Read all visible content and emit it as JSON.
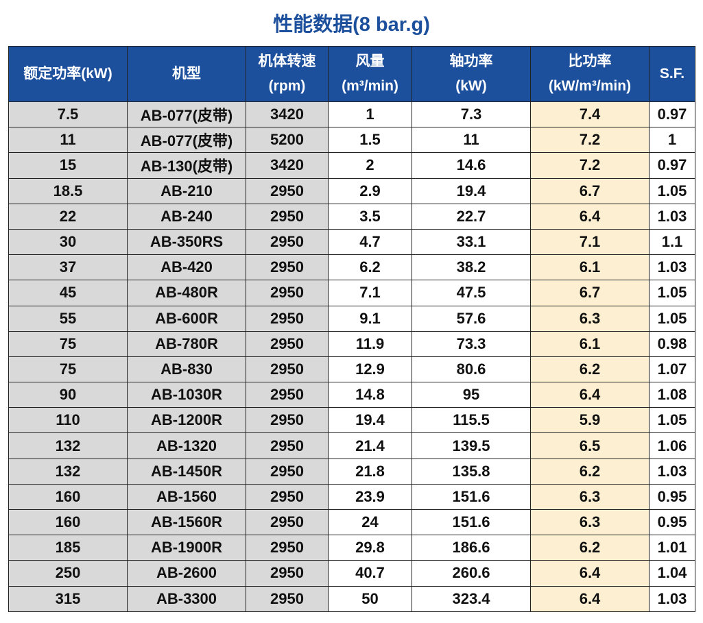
{
  "title": "性能数据(8 bar.g)",
  "headers": [
    [
      "额定功率(kW)"
    ],
    [
      "机型"
    ],
    [
      "机体转速",
      "(rpm)"
    ],
    [
      "风量",
      "(m³/min)"
    ],
    [
      "轴功率",
      "(kW)"
    ],
    [
      "比功率",
      "(kW/m³/min)"
    ],
    [
      "S.F."
    ]
  ],
  "rows": [
    [
      7.5,
      "AB-077(皮带)",
      3420,
      1,
      7.3,
      7.4,
      0.97
    ],
    [
      11,
      "AB-077(皮带)",
      5200,
      1.5,
      11,
      7.2,
      1
    ],
    [
      15,
      "AB-130(皮带)",
      3420,
      2,
      14.6,
      7.2,
      0.97
    ],
    [
      18.5,
      "AB-210",
      2950,
      2.9,
      19.4,
      6.7,
      1.05
    ],
    [
      22,
      "AB-240",
      2950,
      3.5,
      22.7,
      6.4,
      1.03
    ],
    [
      30,
      "AB-350RS",
      2950,
      4.7,
      33.1,
      7.1,
      1.1
    ],
    [
      37,
      "AB-420",
      2950,
      6.2,
      38.2,
      6.1,
      1.03
    ],
    [
      45,
      "AB-480R",
      2950,
      7.1,
      47.5,
      6.7,
      1.05
    ],
    [
      55,
      "AB-600R",
      2950,
      9.1,
      57.6,
      6.3,
      1.05
    ],
    [
      75,
      "AB-780R",
      2950,
      11.9,
      73.3,
      6.1,
      0.98
    ],
    [
      75,
      "AB-830",
      2950,
      12.9,
      80.6,
      6.2,
      1.07
    ],
    [
      90,
      "AB-1030R",
      2950,
      14.8,
      95,
      6.4,
      1.08
    ],
    [
      110,
      "AB-1200R",
      2950,
      19.4,
      115.5,
      5.9,
      1.05
    ],
    [
      132,
      "AB-1320",
      2950,
      21.4,
      139.5,
      6.5,
      1.06
    ],
    [
      132,
      "AB-1450R",
      2950,
      21.8,
      135.8,
      6.2,
      1.03
    ],
    [
      160,
      "AB-1560",
      2950,
      23.9,
      151.6,
      6.3,
      0.95
    ],
    [
      160,
      "AB-1560R",
      2950,
      24,
      151.6,
      6.3,
      0.95
    ],
    [
      185,
      "AB-1900R",
      2950,
      29.8,
      186.6,
      6.2,
      1.01
    ],
    [
      250,
      "AB-2600",
      2950,
      40.7,
      260.6,
      6.4,
      1.04
    ],
    [
      315,
      "AB-3300",
      2950,
      50,
      323.4,
      6.4,
      1.03
    ]
  ]
}
